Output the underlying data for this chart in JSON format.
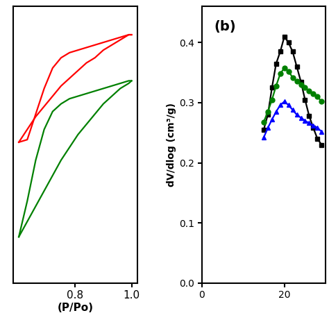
{
  "left_plot": {
    "xlabel": "(P/Po)",
    "xticks": [
      0.8,
      1.0
    ],
    "xlim": [
      0.58,
      1.02
    ],
    "ylim": [
      0.0,
      1.08
    ],
    "red_adsorption_x": [
      0.6,
      0.63,
      0.66,
      0.69,
      0.72,
      0.75,
      0.78,
      0.81,
      0.84,
      0.87,
      0.9,
      0.93,
      0.96,
      0.99,
      1.0
    ],
    "red_adsorption_y": [
      0.55,
      0.6,
      0.65,
      0.69,
      0.73,
      0.77,
      0.8,
      0.83,
      0.86,
      0.88,
      0.91,
      0.93,
      0.95,
      0.97,
      0.97
    ],
    "red_desorption_x": [
      1.0,
      0.99,
      0.96,
      0.93,
      0.9,
      0.87,
      0.84,
      0.81,
      0.78,
      0.75,
      0.72,
      0.69,
      0.66,
      0.63,
      0.6
    ],
    "red_desorption_y": [
      0.97,
      0.97,
      0.96,
      0.95,
      0.94,
      0.93,
      0.92,
      0.91,
      0.9,
      0.88,
      0.84,
      0.76,
      0.66,
      0.56,
      0.55
    ],
    "green_adsorption_x": [
      0.6,
      0.63,
      0.66,
      0.69,
      0.72,
      0.75,
      0.78,
      0.81,
      0.84,
      0.87,
      0.9,
      0.93,
      0.96,
      0.99,
      1.0
    ],
    "green_adsorption_y": [
      0.18,
      0.24,
      0.3,
      0.36,
      0.42,
      0.48,
      0.53,
      0.58,
      0.62,
      0.66,
      0.7,
      0.73,
      0.76,
      0.78,
      0.79
    ],
    "green_desorption_x": [
      1.0,
      0.99,
      0.96,
      0.93,
      0.9,
      0.87,
      0.84,
      0.81,
      0.78,
      0.75,
      0.72,
      0.69,
      0.66,
      0.63,
      0.6
    ],
    "green_desorption_y": [
      0.79,
      0.79,
      0.78,
      0.77,
      0.76,
      0.75,
      0.74,
      0.73,
      0.72,
      0.7,
      0.67,
      0.6,
      0.48,
      0.32,
      0.18
    ]
  },
  "right_plot": {
    "label": "(b)",
    "ylabel": "dV/dlog (cm³/g)",
    "xticks": [
      0,
      20
    ],
    "yticks": [
      0.0,
      0.1,
      0.2,
      0.3,
      0.4
    ],
    "ylim": [
      0.0,
      0.46
    ],
    "xlim": [
      0,
      30
    ],
    "black_x": [
      15,
      16,
      17,
      18,
      19,
      20,
      21,
      22,
      23,
      24,
      25,
      26,
      27,
      28,
      29
    ],
    "black_y": [
      0.255,
      0.28,
      0.325,
      0.365,
      0.385,
      0.41,
      0.4,
      0.385,
      0.36,
      0.335,
      0.305,
      0.278,
      0.258,
      0.24,
      0.23
    ],
    "green_x": [
      15,
      16,
      17,
      18,
      19,
      20,
      21,
      22,
      23,
      24,
      25,
      26,
      27,
      28,
      29
    ],
    "green_y": [
      0.268,
      0.285,
      0.305,
      0.328,
      0.348,
      0.358,
      0.352,
      0.342,
      0.336,
      0.33,
      0.325,
      0.32,
      0.315,
      0.31,
      0.302
    ],
    "blue_x": [
      15,
      16,
      17,
      18,
      19,
      20,
      21,
      22,
      23,
      24,
      25,
      26,
      27,
      28,
      29
    ],
    "blue_y": [
      0.242,
      0.258,
      0.272,
      0.285,
      0.296,
      0.302,
      0.296,
      0.288,
      0.28,
      0.275,
      0.27,
      0.266,
      0.262,
      0.258,
      0.252
    ]
  },
  "linewidth": 1.6,
  "markersize": 5,
  "background_color": "#ffffff"
}
